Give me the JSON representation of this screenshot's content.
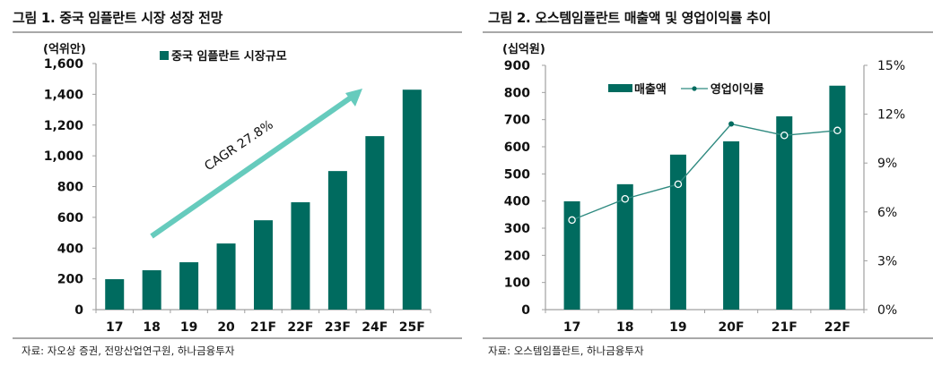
{
  "figure1": {
    "title": "그림 1. 중국 임플란트 시장 성장 전망",
    "unit": "(억위안)",
    "legend": "중국 임플란트 시장규모",
    "annotation": "CAGR 27.8%",
    "source": "자료: 자오상 증권, 전망산업연구원, 하나금융투자",
    "bar_color": "#006b5f",
    "arrow_color": "#66cbbd"
  },
  "figure2": {
    "title": "그림 2. 오스템임플란트 매출액 및 영업이익률 추이",
    "unit": "(십억원)",
    "legend_bar": "매출액",
    "legend_line": "영업이익률",
    "source": "자료: 오스템임플란트, 하나금융투자",
    "bar_color": "#006b5f",
    "line_color": "#2f8a80"
  },
  "chart_data": [
    {
      "type": "bar",
      "title": "그림 1. 중국 임플란트 시장 성장 전망",
      "xlabel": "",
      "ylabel": "(억위안)",
      "categories": [
        "17",
        "18",
        "19",
        "20",
        "21F",
        "22F",
        "23F",
        "24F",
        "25F"
      ],
      "series": [
        {
          "name": "중국 임플란트 시장규모",
          "values": [
            198,
            256,
            308,
            430,
            581,
            698,
            901,
            1128,
            1430
          ]
        }
      ],
      "yticks": [
        "0",
        "200",
        "400",
        "600",
        "800",
        "1,000",
        "1,200",
        "1,400",
        "1,600"
      ],
      "ylim": [
        0,
        1600
      ],
      "annotations": [
        "CAGR 27.8%"
      ],
      "legend_position": "top",
      "grid": false
    },
    {
      "type": "bar",
      "title": "그림 2. 오스템임플란트 매출액 및 영업이익률 추이",
      "xlabel": "",
      "ylabel": "(십억원)",
      "y2label": "%",
      "categories": [
        "17",
        "18",
        "19",
        "20F",
        "21F",
        "22F"
      ],
      "series": [
        {
          "name": "매출액",
          "type": "bar",
          "axis": "left",
          "values": [
            399,
            462,
            571,
            620,
            712,
            825
          ]
        },
        {
          "name": "영업이익률",
          "type": "line",
          "axis": "right",
          "unit": "%",
          "values": [
            5.5,
            6.8,
            7.7,
            11.4,
            10.7,
            11.0
          ]
        }
      ],
      "yticks": [
        "0",
        "100",
        "200",
        "300",
        "400",
        "500",
        "600",
        "700",
        "800",
        "900"
      ],
      "y2ticks": [
        "0%",
        "3%",
        "6%",
        "9%",
        "12%",
        "15%"
      ],
      "ylim": [
        0,
        900
      ],
      "y2lim": [
        0,
        15
      ],
      "legend_position": "top",
      "grid": false
    }
  ]
}
